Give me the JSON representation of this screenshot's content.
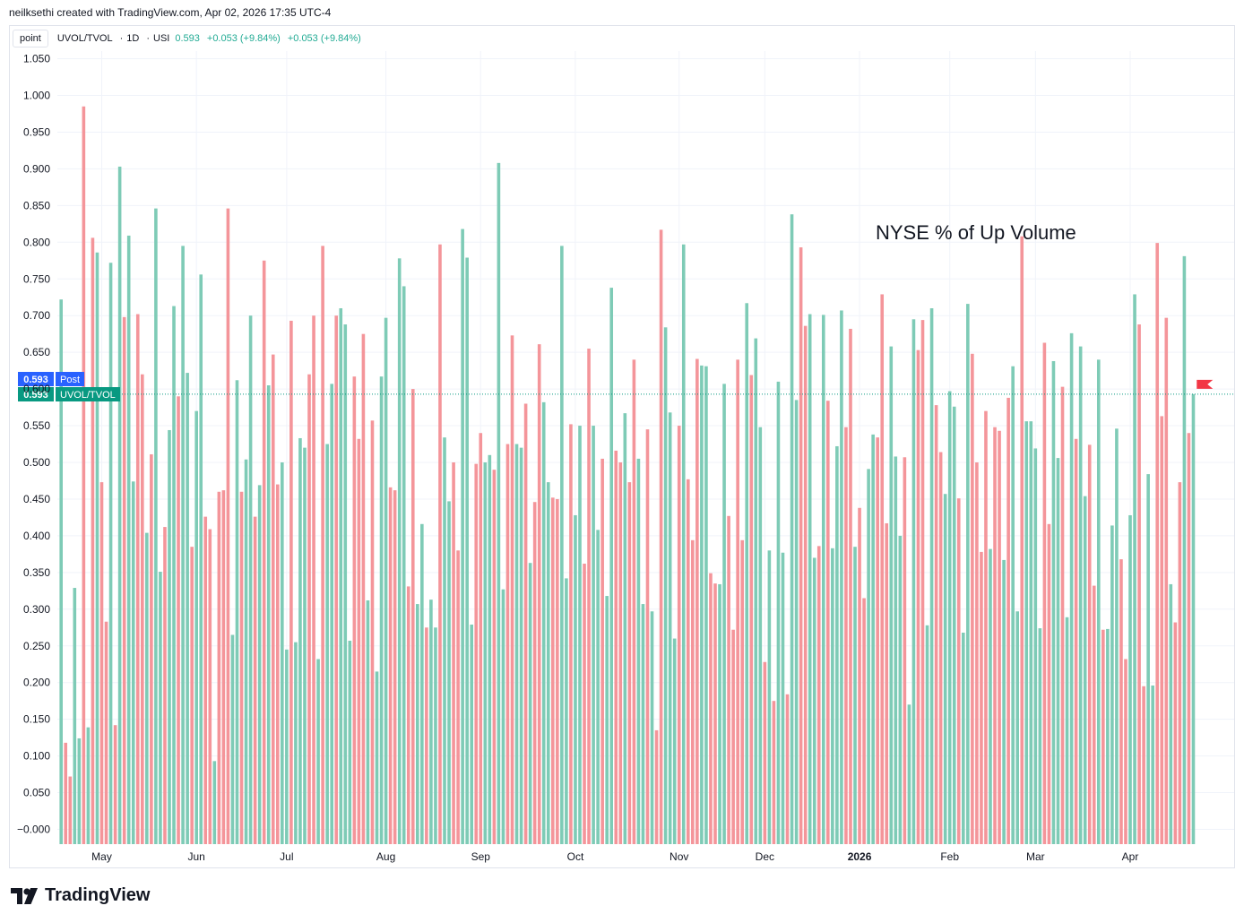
{
  "attribution": "neilksethi created with TradingView.com, Apr 02, 2026 17:35 UTC-4",
  "legend": {
    "scale_button": "point",
    "symbol": "UVOL/TVOL",
    "interval": "1D",
    "exchange": "USI",
    "value": "0.593",
    "change": "+0.053 (+9.84%)",
    "change2": "+0.053 (+9.84%)"
  },
  "annotation": "NYSE % of Up Volume",
  "price_labels": {
    "post": {
      "value": "0.593",
      "tag": "Post",
      "color": "#2962ff"
    },
    "series": {
      "value": "0.593",
      "tag": "UVOL/TVOL",
      "color": "#089981"
    }
  },
  "footer": {
    "brand": "TradingView"
  },
  "colors": {
    "up": "#7ecbb6",
    "down": "#f4959a",
    "grid": "#f0f3fa",
    "last_line": "#089981",
    "flag": "#f23645"
  },
  "chart_data": {
    "type": "bar",
    "title": "NYSE % of Up Volume",
    "series_name": "UVOL/TVOL",
    "last_value": 0.593,
    "ylim": [
      -0.005,
      1.06
    ],
    "yticks": [
      "1.050",
      "1.000",
      "0.950",
      "0.900",
      "0.850",
      "0.800",
      "0.750",
      "0.700",
      "0.650",
      "0.600",
      "0.550",
      "0.500",
      "0.450",
      "0.400",
      "0.350",
      "0.300",
      "0.250",
      "0.200",
      "0.150",
      "0.100",
      "0.050",
      "−0.000"
    ],
    "ytick_values": [
      1.05,
      1.0,
      0.95,
      0.9,
      0.85,
      0.8,
      0.75,
      0.7,
      0.65,
      0.6,
      0.55,
      0.5,
      0.45,
      0.4,
      0.35,
      0.3,
      0.25,
      0.2,
      0.15,
      0.1,
      0.05,
      0.0
    ],
    "xticks": [
      {
        "label": "May",
        "index": 9
      },
      {
        "label": "Jun",
        "index": 30
      },
      {
        "label": "Jul",
        "index": 50
      },
      {
        "label": "Aug",
        "index": 72
      },
      {
        "label": "Sep",
        "index": 93
      },
      {
        "label": "Oct",
        "index": 114
      },
      {
        "label": "Nov",
        "index": 137
      },
      {
        "label": "Dec",
        "index": 156
      },
      {
        "label": "2026",
        "index": 177,
        "bold": true
      },
      {
        "label": "Feb",
        "index": 197
      },
      {
        "label": "Mar",
        "index": 216
      },
      {
        "label": "Apr",
        "index": 237
      }
    ],
    "values": [
      0.722,
      0.118,
      0.072,
      0.329,
      0.124,
      0.985,
      0.139,
      0.806,
      0.786,
      0.473,
      0.283,
      0.772,
      0.142,
      0.903,
      0.698,
      0.809,
      0.474,
      0.702,
      0.62,
      0.404,
      0.511,
      0.846,
      0.351,
      0.412,
      0.544,
      0.713,
      0.59,
      0.795,
      0.622,
      0.385,
      0.57,
      0.756,
      0.426,
      0.409,
      0.093,
      0.46,
      0.462,
      0.846,
      0.265,
      0.612,
      0.46,
      0.504,
      0.7,
      0.426,
      0.469,
      0.775,
      0.605,
      0.647,
      0.47,
      0.5,
      0.245,
      0.693,
      0.255,
      0.533,
      0.52,
      0.62,
      0.7,
      0.232,
      0.795,
      0.525,
      0.607,
      0.7,
      0.71,
      0.688,
      0.257,
      0.617,
      0.532,
      0.675,
      0.312,
      0.557,
      0.215,
      0.617,
      0.697,
      0.466,
      0.462,
      0.778,
      0.74,
      0.331,
      0.6,
      0.307,
      0.416,
      0.275,
      0.313,
      0.275,
      0.797,
      0.534,
      0.447,
      0.5,
      0.38,
      0.818,
      0.779,
      0.279,
      0.498,
      0.54,
      0.5,
      0.51,
      0.49,
      0.908,
      0.327,
      0.525,
      0.673,
      0.525,
      0.52,
      0.58,
      0.363,
      0.446,
      0.661,
      0.582,
      0.473,
      0.452,
      0.45,
      0.795,
      0.342,
      0.552,
      0.428,
      0.55,
      0.362,
      0.655,
      0.55,
      0.408,
      0.505,
      0.318,
      0.738,
      0.516,
      0.5,
      0.567,
      0.473,
      0.64,
      0.505,
      0.307,
      0.545,
      0.297,
      0.135,
      0.817,
      0.684,
      0.568,
      0.26,
      0.55,
      0.797,
      0.477,
      0.394,
      0.641,
      0.632,
      0.631,
      0.349,
      0.335,
      0.334,
      0.607,
      0.427,
      0.272,
      0.64,
      0.394,
      0.717,
      0.619,
      0.669,
      0.548,
      0.228,
      0.38,
      0.175,
      0.61,
      0.377,
      0.184,
      0.838,
      0.585,
      0.793,
      0.686,
      0.702,
      0.37,
      0.386,
      0.701,
      0.584,
      0.383,
      0.522,
      0.707,
      0.548,
      0.682,
      0.385,
      0.438,
      0.315,
      0.491,
      0.538,
      0.534,
      0.729,
      0.417,
      0.658,
      0.508,
      0.4,
      0.507,
      0.17,
      0.695,
      0.653,
      0.694,
      0.278,
      0.71,
      0.578,
      0.514,
      0.457,
      0.597,
      0.576,
      0.451,
      0.268,
      0.716,
      0.648,
      0.5,
      0.378,
      0.57,
      0.382,
      0.548,
      0.543,
      0.367,
      0.588,
      0.631,
      0.297,
      0.808,
      0.556,
      0.556,
      0.519,
      0.274,
      0.663,
      0.416,
      0.638,
      0.506,
      0.603,
      0.289,
      0.676,
      0.532,
      0.658,
      0.454,
      0.524,
      0.332,
      0.64,
      0.272,
      0.273,
      0.414,
      0.546,
      0.368,
      0.232,
      0.428,
      0.729,
      0.688,
      0.195,
      0.484,
      0.196,
      0.799,
      0.563,
      0.697,
      0.334,
      0.282,
      0.473,
      0.781,
      0.54,
      0.593
    ],
    "directions": "udduudududdududuudduduuduuduuduudduddduuduudududduuduuudduduuduuuddduduuudduudduuduuduudduuudduuduudduududduudduuduudduuduuddudduududduuududdduudduudddduduududuuduudduududuuuddudduuddduuuduudduudduuuduuddddudduduuduuuudduuduuduudduduuudduudduudddudduduudduududduduuduuduududdudduuudu"
  }
}
